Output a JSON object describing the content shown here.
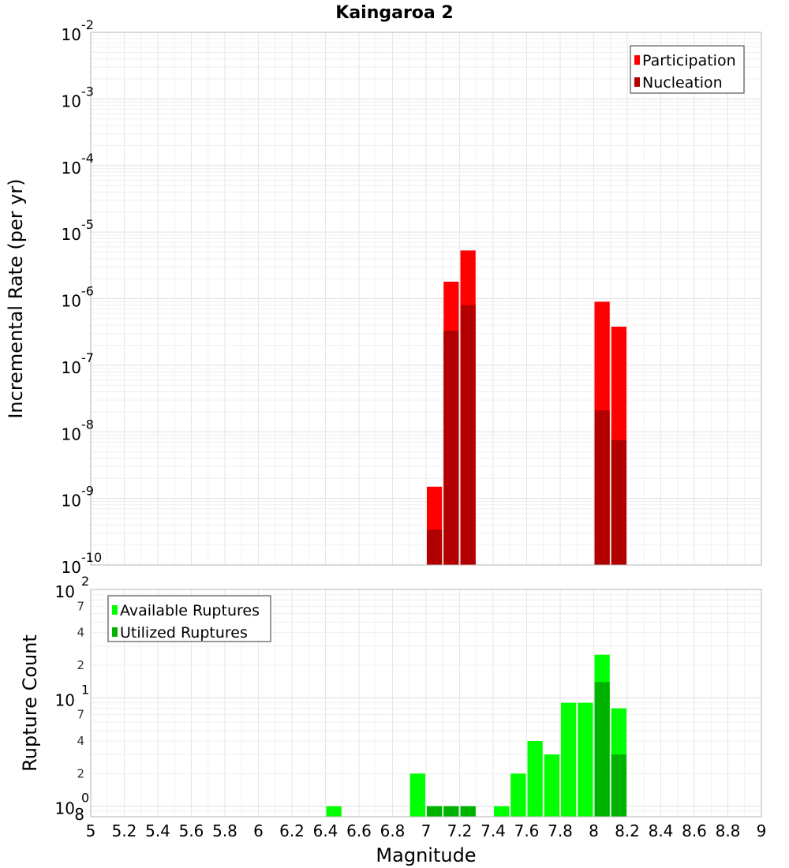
{
  "title": "Kaingaroa 2",
  "chart_data": [
    {
      "type": "bar",
      "panel": "rates",
      "ylabel": "Incremental Rate (per yr)",
      "yscale": "log",
      "ylim": [
        1e-10,
        0.01
      ],
      "xlim": [
        5,
        9
      ],
      "bin_width": 0.1,
      "legend": {
        "placement": "top-right",
        "entries": [
          "Participation",
          "Nucleation"
        ]
      },
      "y_ticks": [
        {
          "base": "10",
          "exp": "-10",
          "value": 1e-10
        },
        {
          "base": "10",
          "exp": "-9",
          "value": 1e-09
        },
        {
          "base": "10",
          "exp": "-8",
          "value": 1e-08
        },
        {
          "base": "10",
          "exp": "-7",
          "value": 1e-07
        },
        {
          "base": "10",
          "exp": "-6",
          "value": 1e-06
        },
        {
          "base": "10",
          "exp": "-5",
          "value": 1e-05
        },
        {
          "base": "10",
          "exp": "-4",
          "value": 0.0001
        },
        {
          "base": "10",
          "exp": "-3",
          "value": 0.001
        },
        {
          "base": "10",
          "exp": "-2",
          "value": 0.01
        }
      ],
      "series": [
        {
          "name": "Participation",
          "color": "#ff0000",
          "points": [
            {
              "x": 7.05,
              "y": 1.5e-09
            },
            {
              "x": 7.15,
              "y": 1.8e-06
            },
            {
              "x": 7.25,
              "y": 5.3e-06
            },
            {
              "x": 8.05,
              "y": 9e-07
            },
            {
              "x": 8.15,
              "y": 3.8e-07
            }
          ]
        },
        {
          "name": "Nucleation",
          "color": "#b20000",
          "points": [
            {
              "x": 7.05,
              "y": 3.4e-10
            },
            {
              "x": 7.15,
              "y": 3.3e-07
            },
            {
              "x": 7.25,
              "y": 8e-07
            },
            {
              "x": 8.05,
              "y": 2.1e-08
            },
            {
              "x": 8.15,
              "y": 7.5e-09
            }
          ]
        }
      ]
    },
    {
      "type": "bar",
      "panel": "counts",
      "xlabel": "Magnitude",
      "ylabel": "Rupture Count",
      "yscale": "log",
      "ylim": [
        0.8,
        100
      ],
      "xlim": [
        5,
        9
      ],
      "bin_width": 0.1,
      "legend": {
        "placement": "top-left",
        "entries": [
          "Available Ruptures",
          "Utilized Ruptures"
        ]
      },
      "y_major_ticks": [
        {
          "base": "10",
          "exp": "0",
          "value": 1
        },
        {
          "base": "10",
          "exp": "1",
          "value": 10
        },
        {
          "base": "10",
          "exp": "2",
          "value": 100
        }
      ],
      "y_minor_ticks": [
        {
          "label": "8",
          "value": 0.8
        },
        {
          "label": "2",
          "value": 2
        },
        {
          "label": "4",
          "value": 4
        },
        {
          "label": "7",
          "value": 7
        },
        {
          "label": "2",
          "value": 20
        },
        {
          "label": "4",
          "value": 40
        },
        {
          "label": "7",
          "value": 70
        }
      ],
      "x_ticks": [
        "5",
        "5.2",
        "5.4",
        "5.6",
        "5.8",
        "6",
        "6.2",
        "6.4",
        "6.6",
        "6.8",
        "7",
        "7.2",
        "7.4",
        "7.6",
        "7.8",
        "8",
        "8.2",
        "8.4",
        "8.6",
        "8.8",
        "9"
      ],
      "series": [
        {
          "name": "Available Ruptures",
          "color": "#00ff00",
          "points": [
            {
              "x": 6.45,
              "y": 1
            },
            {
              "x": 6.95,
              "y": 2
            },
            {
              "x": 7.05,
              "y": 1
            },
            {
              "x": 7.15,
              "y": 1
            },
            {
              "x": 7.25,
              "y": 1
            },
            {
              "x": 7.45,
              "y": 1
            },
            {
              "x": 7.55,
              "y": 2
            },
            {
              "x": 7.65,
              "y": 4
            },
            {
              "x": 7.75,
              "y": 3
            },
            {
              "x": 7.85,
              "y": 9
            },
            {
              "x": 7.95,
              "y": 9
            },
            {
              "x": 8.05,
              "y": 25
            },
            {
              "x": 8.15,
              "y": 8
            }
          ]
        },
        {
          "name": "Utilized Ruptures",
          "color": "#00b200",
          "points": [
            {
              "x": 7.05,
              "y": 1
            },
            {
              "x": 7.15,
              "y": 1
            },
            {
              "x": 7.25,
              "y": 1
            },
            {
              "x": 8.05,
              "y": 14
            },
            {
              "x": 8.15,
              "y": 3
            }
          ]
        }
      ]
    }
  ]
}
